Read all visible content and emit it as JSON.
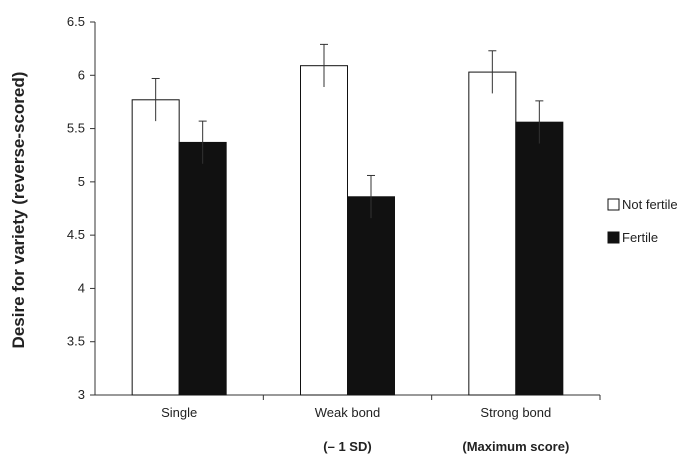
{
  "chart_data": {
    "type": "bar",
    "title": "",
    "xlabel": "",
    "ylabel": "Desire for variety (reverse-scored)",
    "ylim": [
      3,
      6.5
    ],
    "yticks": [
      "3",
      "3.5",
      "4",
      "4.5",
      "5",
      "5.5",
      "6",
      "6.5"
    ],
    "ytick_values": [
      3,
      3.5,
      4,
      4.5,
      5,
      5.5,
      6,
      6.5
    ],
    "categories": [
      "Single",
      "Weak bond",
      "Strong bond"
    ],
    "category_sublabels": [
      "",
      "(– 1 SD)",
      "(Maximum score)"
    ],
    "series": [
      {
        "name": "Not fertile",
        "color": "#ffffff",
        "values": [
          5.77,
          6.09,
          6.03
        ],
        "errors": [
          0.2,
          0.2,
          0.2
        ]
      },
      {
        "name": "Fertile",
        "color": "#111111",
        "values": [
          5.37,
          4.86,
          5.56
        ],
        "errors": [
          0.2,
          0.2,
          0.2
        ]
      }
    ],
    "grid": false,
    "legend_position": "right"
  }
}
